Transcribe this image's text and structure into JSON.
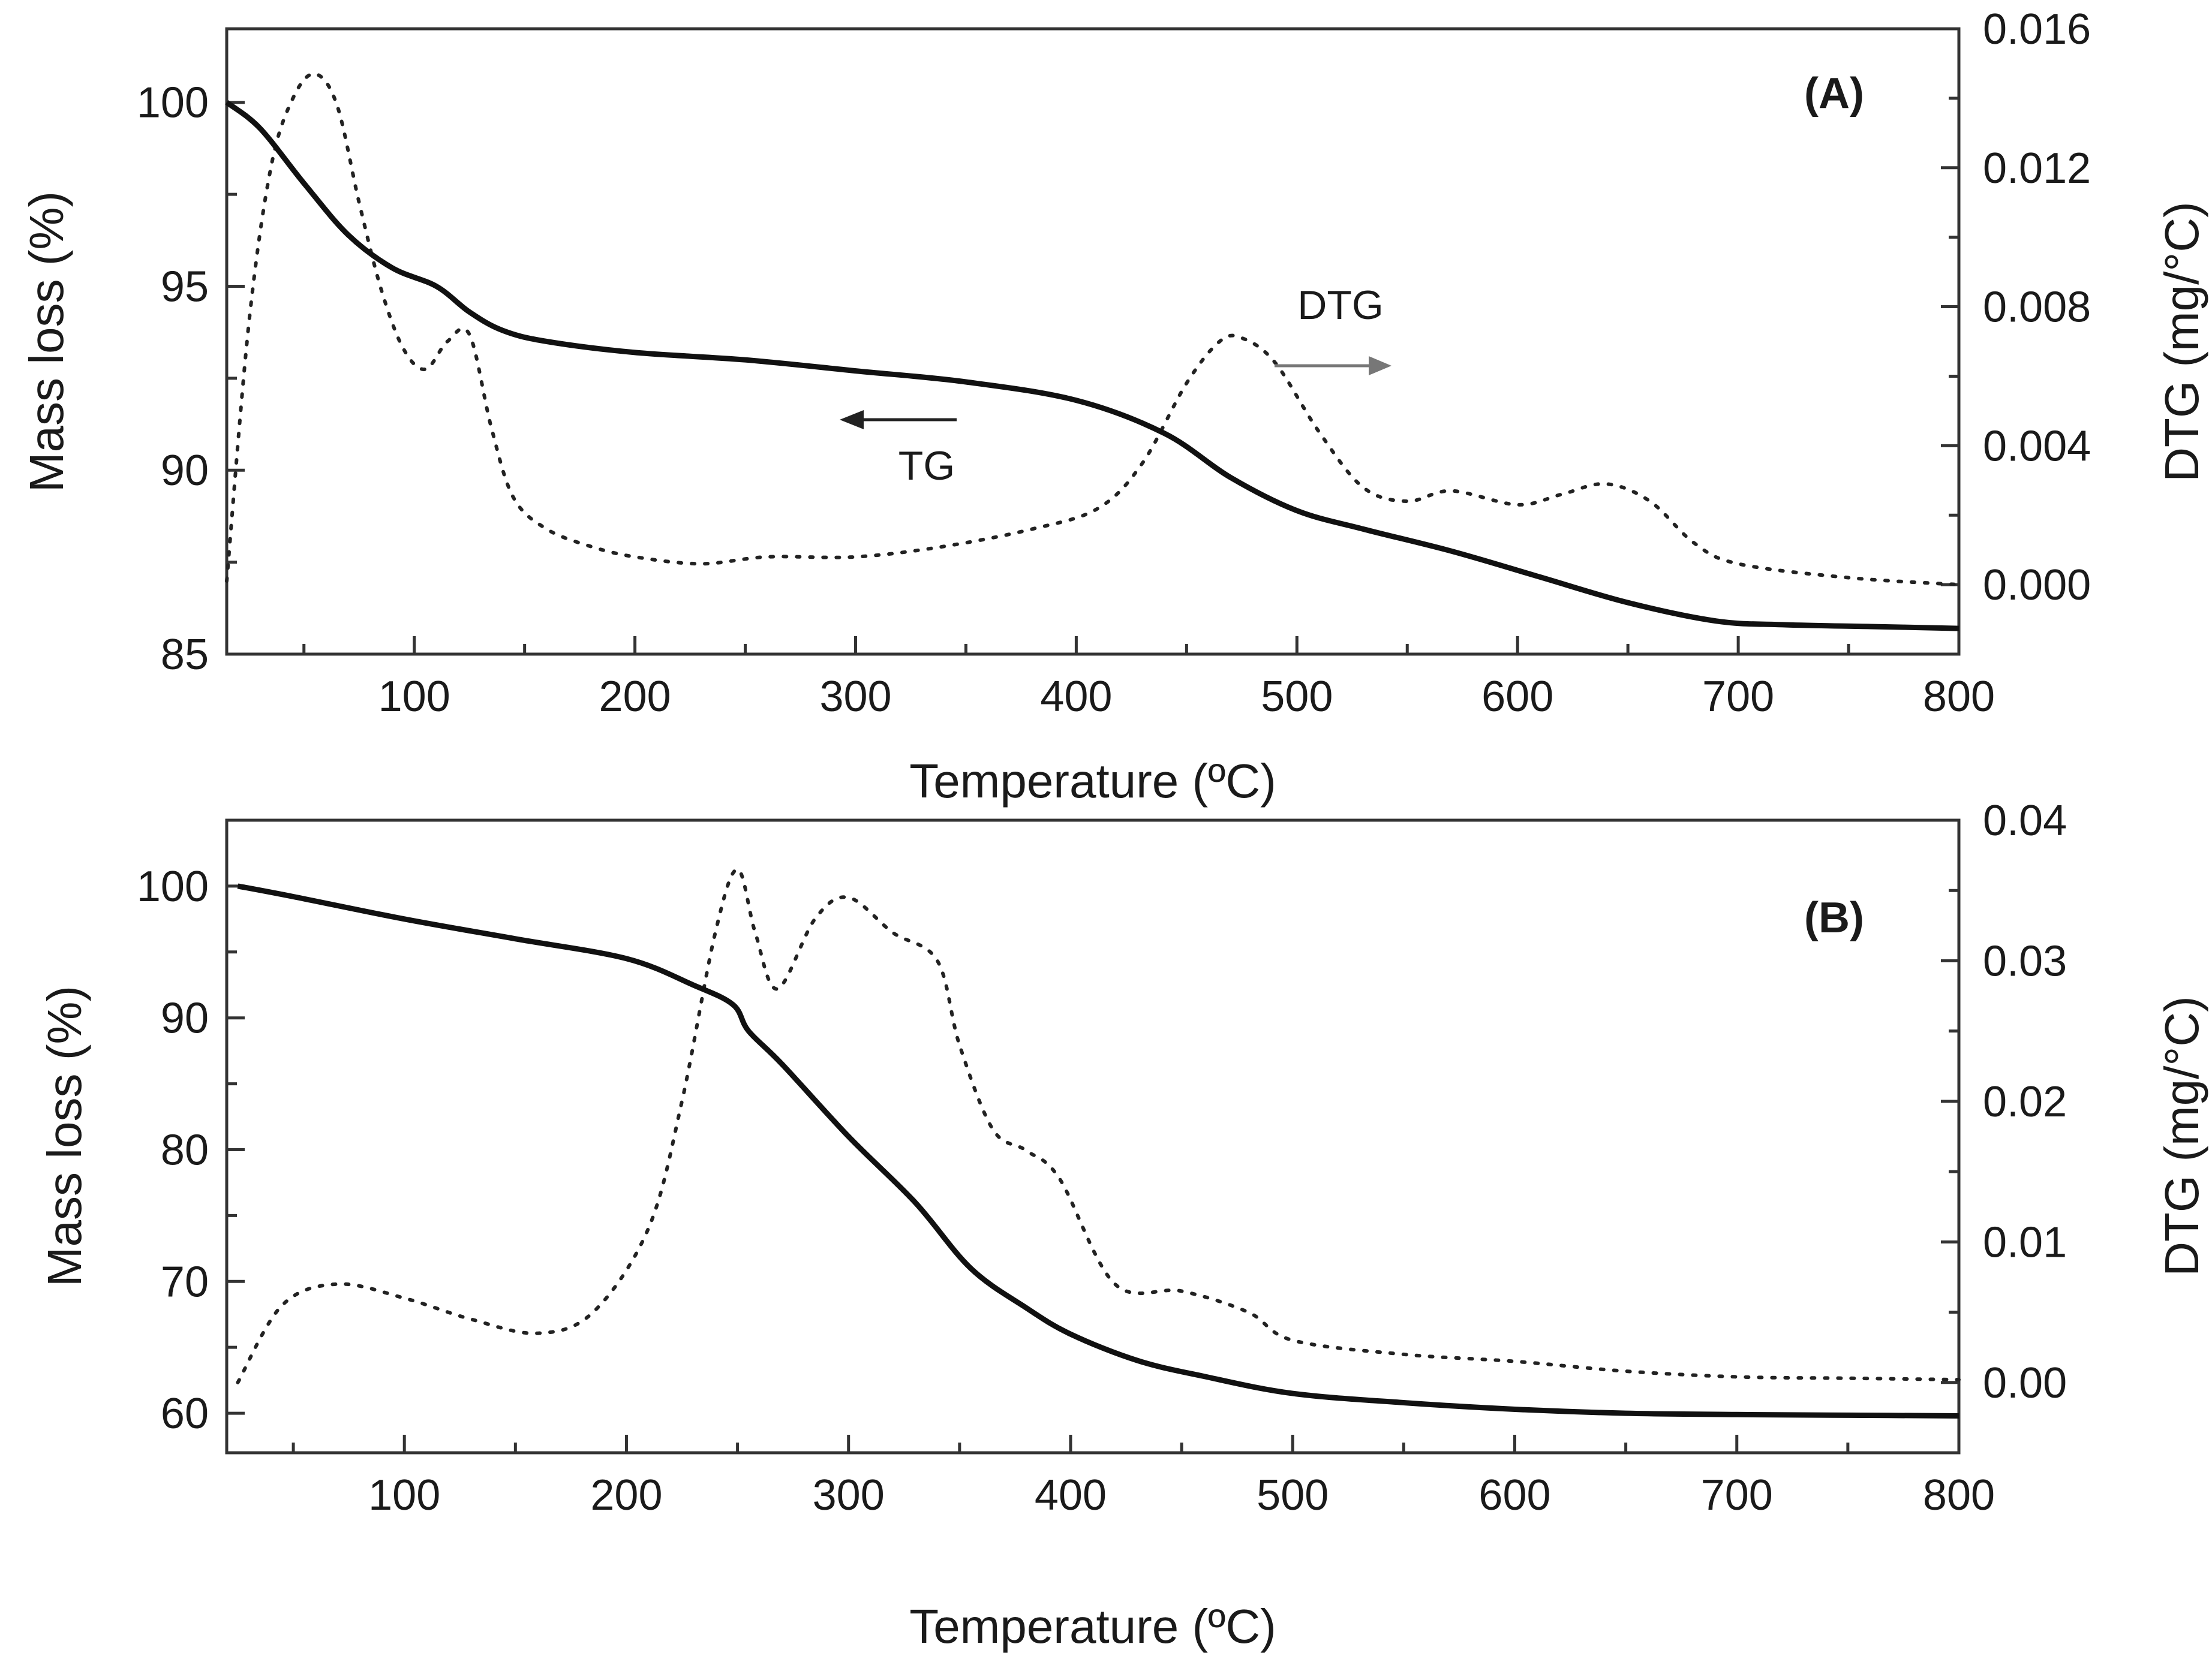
{
  "chart_data": [
    {
      "type": "line",
      "panel_label": "(A)",
      "xlabel": "Temperature (ºC)",
      "ylabel": "Mass loss (%)",
      "y2label": "DTG (mg/°C)",
      "xlim": [
        15,
        800
      ],
      "ylim": [
        85,
        102
      ],
      "y2lim": [
        -0.002,
        0.016
      ],
      "x_ticks": [
        100,
        200,
        300,
        400,
        500,
        600,
        700,
        800
      ],
      "y_ticks": [
        85,
        90,
        95,
        100
      ],
      "y2_ticks": [
        0.0,
        0.004,
        0.008,
        0.012,
        0.016
      ],
      "y2_tick_labels": [
        "0.000",
        "0.004",
        "0.008",
        "0.012",
        "0.016"
      ],
      "grid": false,
      "series": [
        {
          "name": "TG",
          "axis": "left",
          "style": "solid",
          "x": [
            15,
            30,
            50,
            70,
            90,
            110,
            125,
            140,
            160,
            200,
            250,
            300,
            350,
            400,
            440,
            470,
            500,
            530,
            570,
            610,
            650,
            690,
            720,
            760,
            800
          ],
          "y": [
            100,
            99.3,
            97.8,
            96.4,
            95.5,
            95.0,
            94.3,
            93.8,
            93.5,
            93.2,
            93.0,
            92.7,
            92.4,
            91.9,
            91.0,
            89.8,
            88.9,
            88.4,
            87.8,
            87.1,
            86.4,
            85.9,
            85.8,
            85.75,
            85.7
          ]
        },
        {
          "name": "DTG",
          "axis": "right",
          "style": "dotted",
          "x": [
            15,
            25,
            35,
            45,
            55,
            65,
            75,
            85,
            95,
            105,
            115,
            125,
            135,
            145,
            160,
            180,
            200,
            230,
            260,
            300,
            340,
            380,
            410,
            430,
            450,
            465,
            475,
            490,
            510,
            530,
            550,
            570,
            600,
            620,
            640,
            660,
            680,
            700,
            750,
            800
          ],
          "y": [
            0.0001,
            0.0075,
            0.012,
            0.014,
            0.0147,
            0.0138,
            0.011,
            0.0085,
            0.0068,
            0.0062,
            0.007,
            0.0072,
            0.0045,
            0.0025,
            0.0016,
            0.0011,
            0.0008,
            0.0006,
            0.0008,
            0.0008,
            0.0011,
            0.0016,
            0.0022,
            0.0035,
            0.0058,
            0.007,
            0.0071,
            0.0064,
            0.0044,
            0.0028,
            0.0024,
            0.0027,
            0.0023,
            0.0026,
            0.0029,
            0.0024,
            0.0012,
            0.0006,
            0.0002,
            0.0
          ]
        }
      ],
      "annotations": [
        {
          "text": "DTG",
          "arrow": "right",
          "target_axis": "right"
        },
        {
          "text": "TG",
          "arrow": "left",
          "target_axis": "left"
        }
      ]
    },
    {
      "type": "line",
      "panel_label": "(B)",
      "xlabel": "Temperature (ºC)",
      "ylabel": "Mass loss (%)",
      "y2label": "DTG (mg/°C)",
      "xlim": [
        20,
        800
      ],
      "ylim": [
        57,
        105
      ],
      "y2lim": [
        -0.005,
        0.04
      ],
      "x_ticks": [
        100,
        200,
        300,
        400,
        500,
        600,
        700,
        800
      ],
      "y_ticks": [
        60,
        70,
        80,
        90,
        100
      ],
      "y2_ticks": [
        0.0,
        0.01,
        0.02,
        0.03,
        0.04
      ],
      "y2_tick_labels": [
        "0.00",
        "0.01",
        "0.02",
        "0.03",
        "0.04"
      ],
      "grid": false,
      "series": [
        {
          "name": "TG",
          "axis": "left",
          "style": "solid",
          "x": [
            25,
            50,
            100,
            150,
            200,
            230,
            248,
            255,
            270,
            300,
            330,
            355,
            380,
            400,
            430,
            460,
            500,
            550,
            600,
            650,
            700,
            750,
            800
          ],
          "y": [
            100,
            99.2,
            97.5,
            96.0,
            94.5,
            92.5,
            91.0,
            89.0,
            86.5,
            81.0,
            76.0,
            71.0,
            68.0,
            66.0,
            64.0,
            62.8,
            61.5,
            60.8,
            60.3,
            60.0,
            59.9,
            59.85,
            59.8
          ]
        },
        {
          "name": "DTG",
          "axis": "right",
          "style": "dotted",
          "x": [
            25,
            45,
            70,
            100,
            130,
            160,
            185,
            210,
            225,
            240,
            250,
            258,
            268,
            285,
            300,
            320,
            340,
            350,
            365,
            380,
            395,
            420,
            450,
            480,
            500,
            550,
            600,
            650,
            700,
            750,
            800
          ],
          "y": [
            0.0,
            0.0055,
            0.007,
            0.006,
            0.0045,
            0.0035,
            0.005,
            0.011,
            0.02,
            0.032,
            0.0365,
            0.032,
            0.028,
            0.033,
            0.0345,
            0.032,
            0.03,
            0.024,
            0.018,
            0.0165,
            0.0145,
            0.007,
            0.0065,
            0.005,
            0.003,
            0.002,
            0.0015,
            0.0008,
            0.0004,
            0.0003,
            0.0002
          ]
        }
      ]
    }
  ]
}
